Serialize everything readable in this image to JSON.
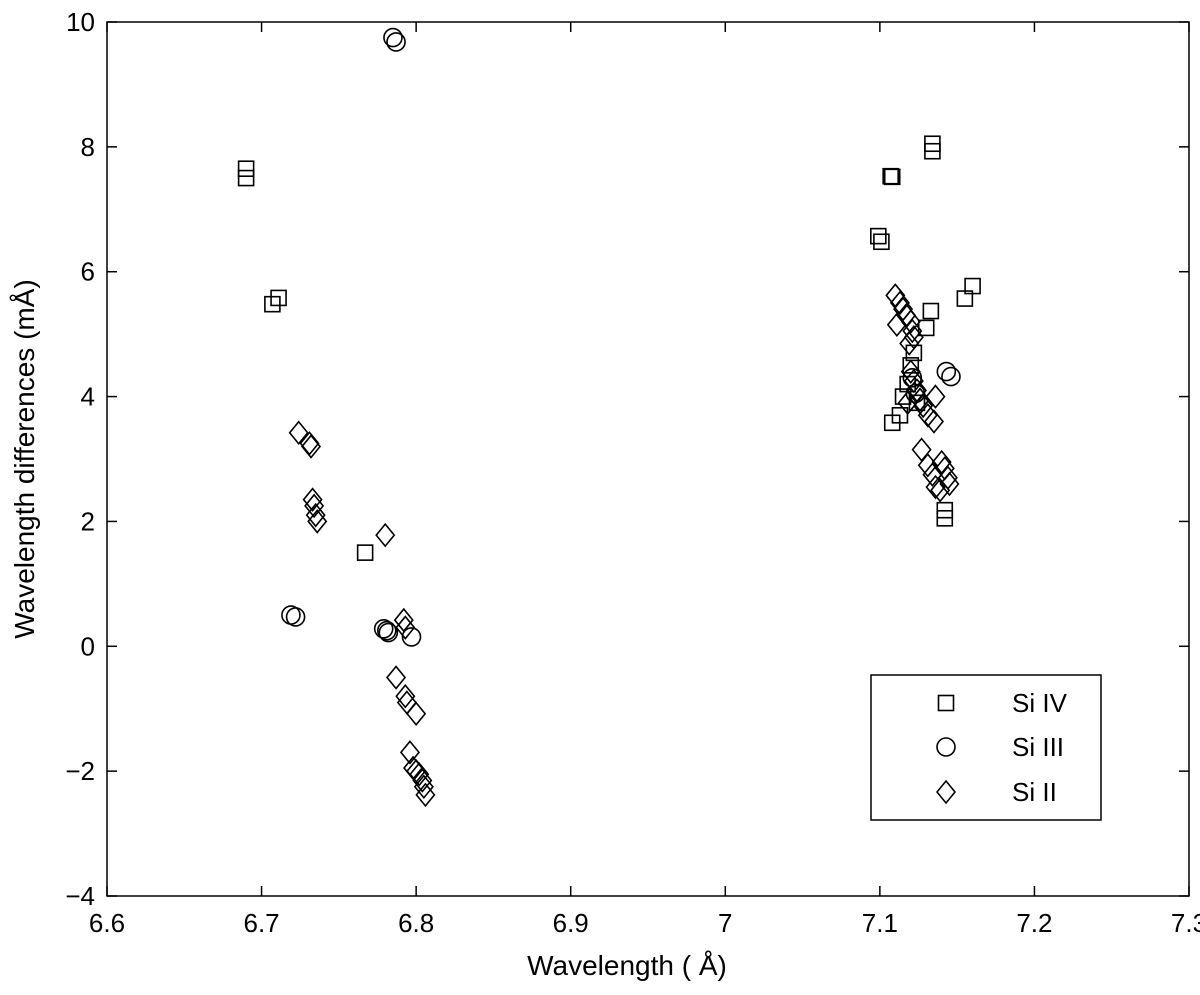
{
  "chart_data": {
    "type": "scatter",
    "xlabel": "Wavelength ( Å)",
    "ylabel": "Wavelength differences (mÅ)",
    "xlim": [
      6.6,
      7.3
    ],
    "ylim": [
      -4,
      10
    ],
    "xticks": [
      6.6,
      6.7,
      6.8,
      6.9,
      7.0,
      7.1,
      7.2,
      7.3
    ],
    "xtick_labels": [
      "6.6",
      "6.7",
      "6.8",
      "6.9",
      "7",
      "7.1",
      "7.2",
      "7.3"
    ],
    "yticks": [
      -4,
      -2,
      0,
      2,
      4,
      6,
      8,
      10
    ],
    "ytick_labels": [
      "−4",
      "−2",
      "0",
      "2",
      "4",
      "6",
      "8",
      "10"
    ],
    "grid": false,
    "legend_position": "bottom-right",
    "series": [
      {
        "name": "Si IV",
        "marker": "square",
        "points": [
          [
            6.69,
            7.65
          ],
          [
            6.69,
            7.5
          ],
          [
            6.707,
            5.48
          ],
          [
            6.711,
            5.58
          ],
          [
            6.767,
            1.5
          ],
          [
            7.099,
            6.57
          ],
          [
            7.101,
            6.48
          ],
          [
            7.107,
            7.53
          ],
          [
            7.108,
            7.52
          ],
          [
            7.134,
            8.05
          ],
          [
            7.134,
            7.93
          ],
          [
            7.16,
            5.77
          ],
          [
            7.155,
            5.57
          ],
          [
            7.133,
            5.37
          ],
          [
            7.13,
            5.1
          ],
          [
            7.108,
            3.58
          ],
          [
            7.113,
            3.7
          ],
          [
            7.115,
            4.0
          ],
          [
            7.118,
            4.2
          ],
          [
            7.12,
            4.5
          ],
          [
            7.122,
            4.7
          ],
          [
            7.124,
            3.9
          ],
          [
            7.142,
            2.18
          ],
          [
            7.142,
            2.05
          ]
        ]
      },
      {
        "name": "Si III",
        "marker": "circle",
        "points": [
          [
            6.785,
            9.75
          ],
          [
            6.787,
            9.68
          ],
          [
            6.719,
            0.5
          ],
          [
            6.722,
            0.47
          ],
          [
            6.779,
            0.28
          ],
          [
            6.781,
            0.25
          ],
          [
            6.782,
            0.22
          ],
          [
            6.797,
            0.15
          ],
          [
            7.143,
            4.4
          ],
          [
            7.146,
            4.32
          ],
          [
            7.121,
            4.3
          ],
          [
            7.123,
            4.05
          ]
        ]
      },
      {
        "name": "Si II",
        "marker": "diamond",
        "points": [
          [
            6.724,
            3.42
          ],
          [
            6.731,
            3.25
          ],
          [
            6.732,
            3.2
          ],
          [
            6.733,
            2.35
          ],
          [
            6.734,
            2.25
          ],
          [
            6.735,
            2.1
          ],
          [
            6.736,
            2.0
          ],
          [
            6.78,
            1.78
          ],
          [
            6.792,
            0.42
          ],
          [
            6.793,
            0.3
          ],
          [
            6.787,
            -0.5
          ],
          [
            6.793,
            -0.8
          ],
          [
            6.794,
            -0.9
          ],
          [
            6.8,
            -1.08
          ],
          [
            6.796,
            -1.7
          ],
          [
            6.798,
            -1.95
          ],
          [
            6.8,
            -2.0
          ],
          [
            6.802,
            -2.05
          ],
          [
            6.804,
            -2.15
          ],
          [
            6.805,
            -2.25
          ],
          [
            6.806,
            -2.38
          ],
          [
            7.11,
            5.62
          ],
          [
            7.113,
            5.5
          ],
          [
            7.115,
            5.4
          ],
          [
            7.117,
            5.3
          ],
          [
            7.111,
            5.15
          ],
          [
            7.12,
            5.2
          ],
          [
            7.121,
            5.05
          ],
          [
            7.122,
            4.95
          ],
          [
            7.119,
            4.85
          ],
          [
            7.12,
            4.4
          ],
          [
            7.122,
            4.25
          ],
          [
            7.124,
            4.1
          ],
          [
            7.126,
            3.95
          ],
          [
            7.128,
            3.85
          ],
          [
            7.131,
            3.7
          ],
          [
            7.135,
            3.6
          ],
          [
            7.118,
            3.9
          ],
          [
            7.136,
            4.0
          ],
          [
            7.127,
            3.15
          ],
          [
            7.131,
            2.9
          ],
          [
            7.134,
            2.75
          ],
          [
            7.136,
            2.55
          ],
          [
            7.139,
            2.5
          ],
          [
            7.14,
            2.95
          ],
          [
            7.142,
            2.85
          ],
          [
            7.144,
            2.7
          ],
          [
            7.145,
            2.6
          ]
        ]
      }
    ]
  }
}
